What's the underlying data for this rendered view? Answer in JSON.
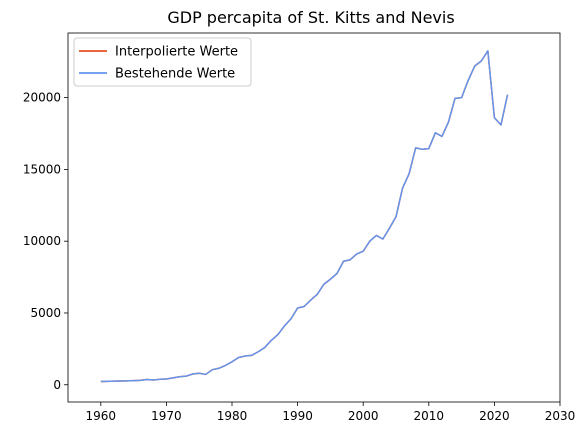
{
  "chart_data": {
    "type": "line",
    "title": "GDP percapita of St. Kitts and Nevis",
    "xlabel": "",
    "ylabel": "",
    "xlim": [
      1955,
      2030
    ],
    "ylim": [
      -1200,
      24500
    ],
    "xticks": [
      1960,
      1970,
      1980,
      1990,
      2000,
      2010,
      2020,
      2030
    ],
    "yticks": [
      0,
      5000,
      10000,
      15000,
      20000
    ],
    "grid": false,
    "legend": "top-left",
    "series": [
      {
        "name": "Interpolierte Werte",
        "color": "#e8501f",
        "x": [
          1960,
          1961,
          1962,
          1963,
          1964,
          1965,
          1966,
          1967,
          1968,
          1969,
          1970,
          1971,
          1972,
          1973,
          1974,
          1975,
          1976,
          1977,
          1978,
          1979,
          1980,
          1981,
          1982,
          1983,
          1984,
          1985,
          1986,
          1987,
          1988,
          1989,
          1990,
          1991,
          1992,
          1993,
          1994,
          1995,
          1996,
          1997,
          1998,
          1999,
          2000,
          2001,
          2002,
          2003,
          2004,
          2005,
          2006,
          2007,
          2008,
          2009,
          2010,
          2011,
          2012,
          2013,
          2014,
          2015,
          2016,
          2017,
          2018,
          2019,
          2020,
          2021,
          2022
        ],
        "y": [
          230,
          240,
          250,
          260,
          270,
          290,
          310,
          370,
          330,
          380,
          400,
          480,
          560,
          600,
          750,
          800,
          720,
          1050,
          1150,
          1350,
          1600,
          1900,
          2000,
          2050,
          2300,
          2600,
          3100,
          3500,
          4100,
          4600,
          5350,
          5450,
          5900,
          6300,
          7000,
          7350,
          7750,
          8600,
          8700,
          9100,
          9300,
          10000,
          10400,
          10150,
          10900,
          11700,
          13700,
          14700,
          16500,
          16400,
          16450,
          17550,
          17300,
          18300,
          19950,
          20000,
          21200,
          22200,
          22550,
          23250,
          18600,
          18100,
          20200
        ]
      },
      {
        "name": "Bestehende Werte",
        "color": "#6495ed",
        "x": [
          1960,
          1961,
          1962,
          1963,
          1964,
          1965,
          1966,
          1967,
          1968,
          1969,
          1970,
          1971,
          1972,
          1973,
          1974,
          1975,
          1976,
          1977,
          1978,
          1979,
          1980,
          1981,
          1982,
          1983,
          1984,
          1985,
          1986,
          1987,
          1988,
          1989,
          1990,
          1991,
          1992,
          1993,
          1994,
          1995,
          1996,
          1997,
          1998,
          1999,
          2000,
          2001,
          2002,
          2003,
          2004,
          2005,
          2006,
          2007,
          2008,
          2009,
          2010,
          2011,
          2012,
          2013,
          2014,
          2015,
          2016,
          2017,
          2018,
          2019,
          2020,
          2021,
          2022
        ],
        "y": [
          230,
          240,
          250,
          260,
          270,
          290,
          310,
          370,
          330,
          380,
          400,
          480,
          560,
          600,
          750,
          800,
          720,
          1050,
          1150,
          1350,
          1600,
          1900,
          2000,
          2050,
          2300,
          2600,
          3100,
          3500,
          4100,
          4600,
          5350,
          5450,
          5900,
          6300,
          7000,
          7350,
          7750,
          8600,
          8700,
          9100,
          9300,
          10000,
          10400,
          10150,
          10900,
          11700,
          13700,
          14700,
          16500,
          16400,
          16450,
          17550,
          17300,
          18300,
          19950,
          20000,
          21200,
          22200,
          22550,
          23250,
          18600,
          18100,
          20200
        ]
      }
    ]
  }
}
